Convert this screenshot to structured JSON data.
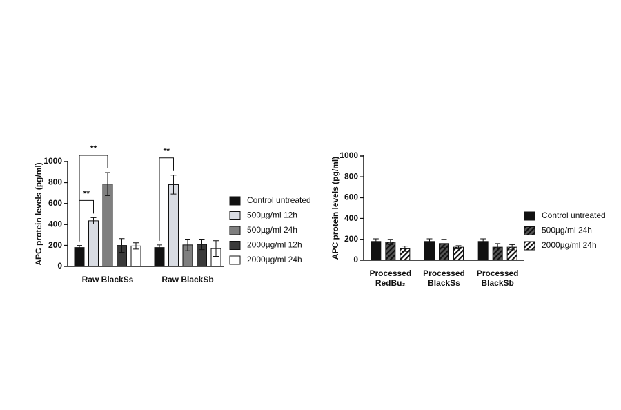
{
  "chart_data": [
    {
      "type": "bar",
      "y_label": "APC protein levels (pg/ml)",
      "categories": [
        [
          "Raw BlackSs"
        ],
        [
          "Raw BlackSb"
        ]
      ],
      "ylim": [
        0,
        1000
      ],
      "yticks": [
        0,
        200,
        400,
        600,
        800,
        1000
      ],
      "series": [
        {
          "name": "Control untreated",
          "color": "#111111",
          "values": [
            180,
            180
          ],
          "errors": [
            20,
            25
          ]
        },
        {
          "name": "500µg/ml 12h",
          "color": "#d9dce3",
          "values": [
            435,
            780
          ],
          "errors": [
            30,
            90
          ]
        },
        {
          "name": "500µg/ml 24h",
          "color": "#7f7f7f",
          "values": [
            785,
            205
          ],
          "errors": [
            110,
            55
          ]
        },
        {
          "name": "2000µg/ml 12h",
          "color": "#3a3a3a",
          "values": [
            200,
            210
          ],
          "errors": [
            65,
            50
          ]
        },
        {
          "name": "2000µg/ml 24h",
          "color": "#ffffff",
          "values": [
            195,
            170
          ],
          "errors": [
            30,
            75
          ]
        }
      ],
      "annotations": [
        {
          "text": "**",
          "category": 0,
          "from": 0,
          "to": 1
        },
        {
          "text": "**",
          "category": 0,
          "from": 0,
          "to": 2
        },
        {
          "text": "**",
          "category": 1,
          "from": 0,
          "to": 1
        }
      ]
    },
    {
      "type": "bar",
      "y_label": "APC protein levels (pg/ml)",
      "categories": [
        [
          "Processed",
          "RedBu₂"
        ],
        [
          "Processed",
          "BlackSs"
        ],
        [
          "Processed",
          "BlackSb"
        ]
      ],
      "ylim": [
        0,
        1000
      ],
      "yticks": [
        0,
        200,
        400,
        600,
        800,
        1000
      ],
      "series": [
        {
          "name": "Control untreated",
          "color": "#111111",
          "values": [
            180,
            180,
            180
          ],
          "errors": [
            25,
            25,
            25
          ]
        },
        {
          "name": "500µg/ml 24h",
          "color": "#555555",
          "pattern": "hatch",
          "values": [
            175,
            160,
            125
          ],
          "errors": [
            25,
            40,
            35
          ]
        },
        {
          "name": "2000µg/ml 24h",
          "color": "#ffffff",
          "pattern": "hatch",
          "values": [
            110,
            125,
            125
          ],
          "errors": [
            25,
            15,
            25
          ]
        }
      ]
    }
  ]
}
